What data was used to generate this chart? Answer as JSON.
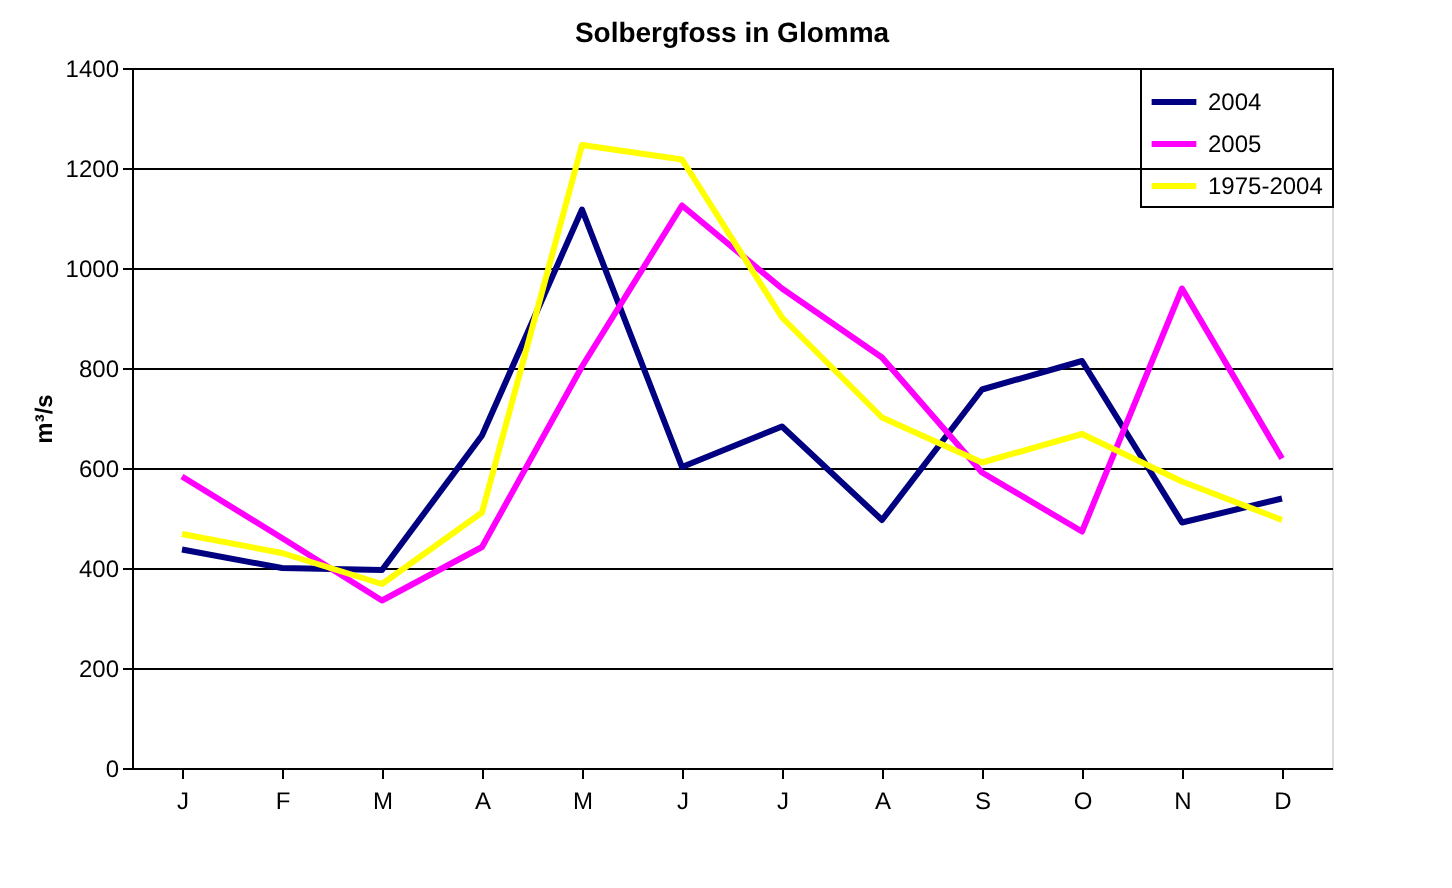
{
  "chart_data": {
    "type": "line",
    "title": "Solbergfoss in Glomma",
    "ylabel": "m³/s",
    "categories": [
      "J",
      "F",
      "M",
      "A",
      "M",
      "J",
      "J",
      "A",
      "S",
      "O",
      "N",
      "D"
    ],
    "series": [
      {
        "name": "2004",
        "color": "#000080",
        "values": [
          437,
          400,
          396,
          665,
          1117,
          602,
          683,
          496,
          757,
          814,
          491,
          539
        ]
      },
      {
        "name": "2005",
        "color": "#ff00ff",
        "values": [
          583,
          460,
          335,
          442,
          803,
          1125,
          959,
          821,
          591,
          473,
          959,
          619
        ]
      },
      {
        "name": "1975-2004",
        "color": "#ffff00",
        "values": [
          468,
          430,
          368,
          511,
          1246,
          1217,
          901,
          701,
          611,
          668,
          573,
          496
        ]
      }
    ],
    "ylim": [
      0,
      1400
    ],
    "yticks": [
      0,
      200,
      400,
      600,
      800,
      1000,
      1200,
      1400
    ],
    "grid": "y",
    "legend": "top right",
    "marker": "none",
    "line_style": "solid"
  }
}
